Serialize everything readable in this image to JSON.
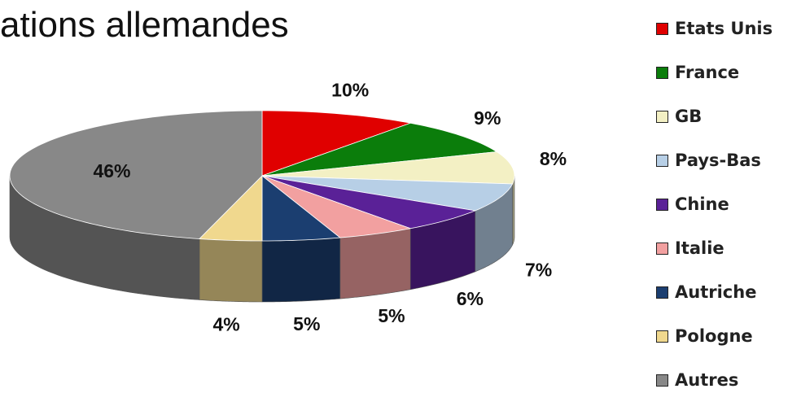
{
  "title": "ations allemandes",
  "chart_data": {
    "type": "pie",
    "title": "ations allemandes",
    "legend_position": "right",
    "categories": [
      "Etats Unis",
      "France",
      "GB",
      "Pays-Bas",
      "Chine",
      "Italie",
      "Autriche",
      "Pologne",
      "Autres"
    ],
    "values": [
      10,
      9,
      8,
      7,
      6,
      5,
      5,
      4,
      46
    ],
    "labels": [
      "10%",
      "9%",
      "8%",
      "7%",
      "6%",
      "5%",
      "5%",
      "4%",
      "46%"
    ],
    "colors": [
      "#e00000",
      "#0b7d0b",
      "#f3f0c4",
      "#b7cfe6",
      "#5a2197",
      "#f2a0a0",
      "#1b3e70",
      "#f0d88e",
      "#888888"
    ]
  }
}
